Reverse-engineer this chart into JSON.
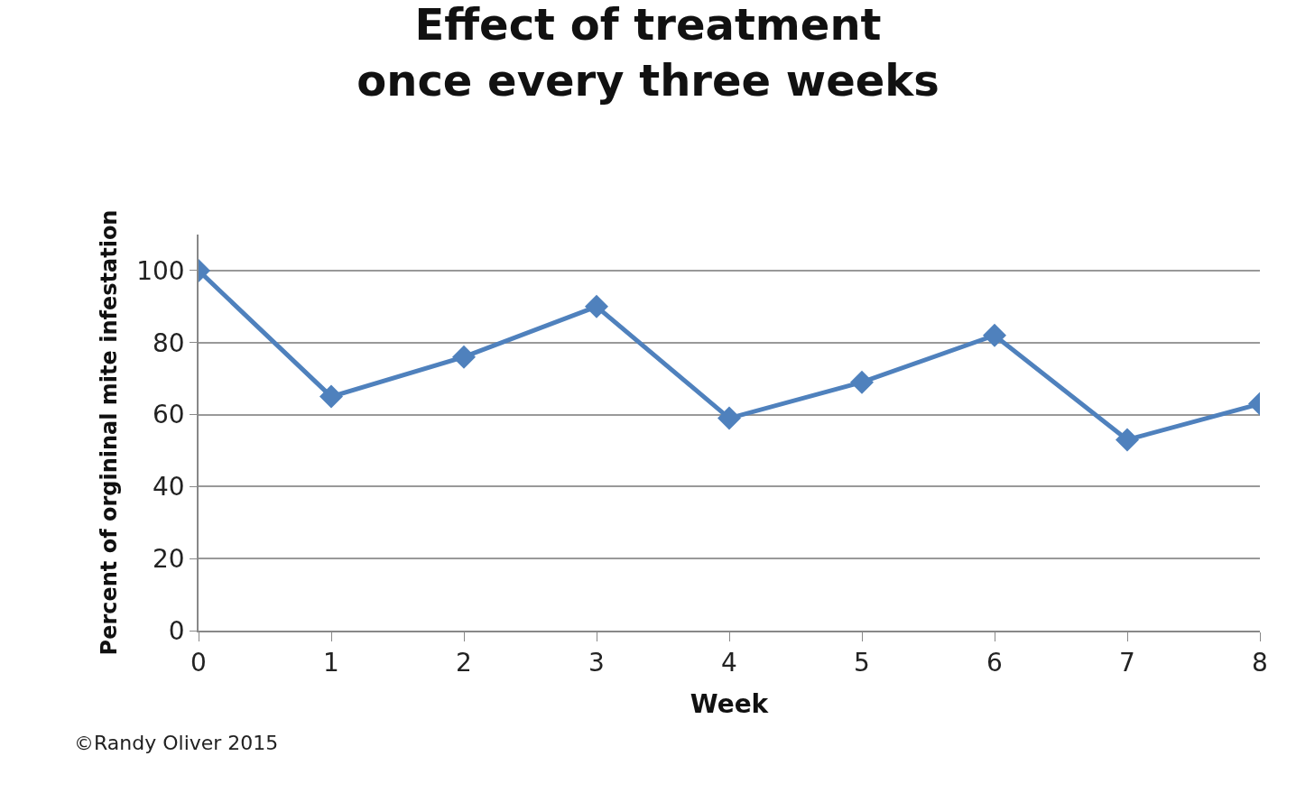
{
  "chart_data": {
    "type": "line",
    "title": "Effect of treatment\nonce every three weeks",
    "xlabel": "Week",
    "ylabel": "Percent of orgininal mite infestation",
    "x": [
      0,
      1,
      2,
      3,
      4,
      5,
      6,
      7,
      8
    ],
    "series": [
      {
        "color": "#4f81bd",
        "values": [
          100,
          65,
          76,
          90,
          59,
          69,
          82,
          53,
          63
        ]
      }
    ],
    "xlim": [
      0,
      8
    ],
    "xticks": [
      0,
      1,
      2,
      3,
      4,
      5,
      6,
      7,
      8
    ],
    "ylim": [
      0,
      110
    ],
    "yticks": [
      0,
      20,
      40,
      60,
      80,
      100
    ],
    "grid": "y",
    "marker": "diamond",
    "line_style": "solid",
    "legend": false,
    "annotations": [
      "©Randy Oliver 2015"
    ]
  }
}
